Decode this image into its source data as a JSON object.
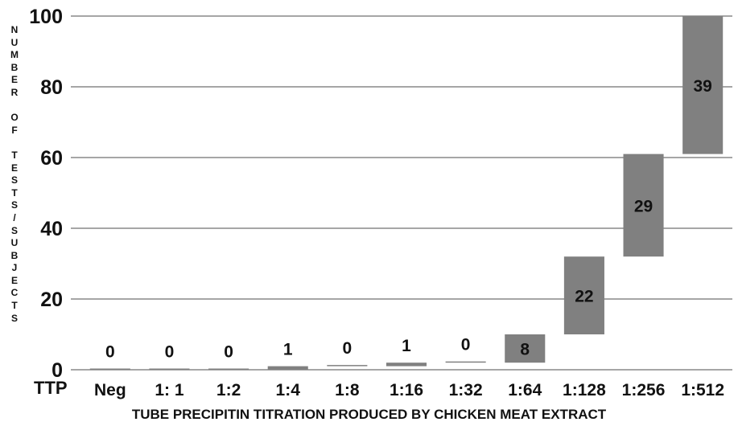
{
  "chart_data": {
    "type": "bar",
    "subtype": "waterfall",
    "categories": [
      "Neg",
      "1: 1",
      "1:2",
      "1:4",
      "1:8",
      "1:16",
      "1:32",
      "1:64",
      "1:128",
      "1:256",
      "1:512"
    ],
    "values": [
      0,
      0,
      0,
      1,
      0,
      1,
      0,
      8,
      22,
      29,
      39
    ],
    "cumulative_end": [
      0,
      0,
      0,
      1,
      1,
      2,
      2,
      10,
      32,
      61,
      100
    ],
    "data_labels": [
      "0",
      "0",
      "0",
      "1",
      "0",
      "1",
      "0",
      "8",
      "22",
      "29",
      "39"
    ],
    "ylim": [
      0,
      100
    ],
    "yticks": [
      "0",
      "20",
      "40",
      "60",
      "80",
      "100"
    ],
    "ylabel": "NUMBER OF TESTS/SUBJECTS",
    "xlabel": "TUBE PRECIPITIN TITRATION PRODUCED BY CHICKEN MEAT EXTRACT",
    "x_prefix_label": "TTP",
    "bar_color": "#808080",
    "grid_color": "#a6a6a6",
    "grid": true,
    "legend": "none"
  }
}
